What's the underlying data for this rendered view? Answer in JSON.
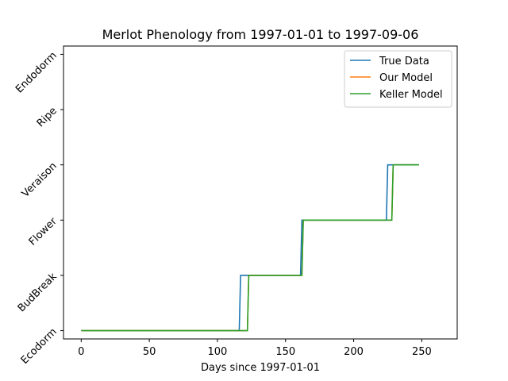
{
  "chart_data": {
    "type": "line",
    "title": "Merlot Phenology from 1997-01-01 to 1997-09-06",
    "xlabel": "Days since 1997-01-01",
    "ylabel": "",
    "xlim": [
      -13,
      276
    ],
    "ylim": [
      -0.15,
      5.15
    ],
    "x_ticks": [
      0,
      50,
      100,
      150,
      200,
      250
    ],
    "y_ticks": [
      0,
      1,
      2,
      3,
      4,
      5
    ],
    "y_tick_labels": [
      "Ecodorm",
      "BudBreak",
      "Flower",
      "Veraison",
      "Ripe",
      "Endodorm"
    ],
    "legend_position": "upper right",
    "series": [
      {
        "name": "True Data",
        "color": "#1f77b4",
        "x": [
          0,
          116,
          117,
          161,
          162,
          224,
          225,
          248
        ],
        "y": [
          0,
          0,
          1,
          1,
          2,
          2,
          3,
          3
        ]
      },
      {
        "name": "Our Model",
        "color": "#ff7f0e",
        "x": [
          0,
          122,
          123,
          162,
          163,
          228,
          229,
          248
        ],
        "y": [
          0,
          0,
          1,
          1,
          2,
          2,
          3,
          3
        ]
      },
      {
        "name": "Keller Model",
        "color": "#2ca02c",
        "x": [
          0,
          122,
          123,
          162,
          163,
          228,
          229,
          248
        ],
        "y": [
          0,
          0,
          1,
          1,
          2,
          2,
          3,
          3
        ]
      }
    ]
  }
}
